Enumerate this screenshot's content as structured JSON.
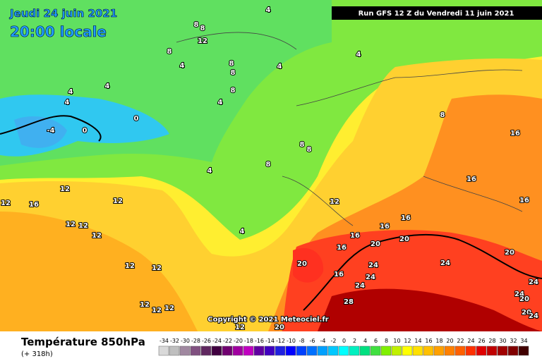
{
  "header": {
    "date": "Jeudi 24 juin 2021",
    "time": "20:00 locale",
    "run": "Run GFS 12 Z du Vendredi 11 juin 2021",
    "copyright": "Copyright © 2021 Meteociel.fr"
  },
  "footer": {
    "title": "Température 850hPa",
    "lead": "(+ 318h)"
  },
  "legend": {
    "values": [
      -34,
      -32,
      -30,
      -28,
      -26,
      -24,
      -22,
      -20,
      -18,
      -16,
      -14,
      -12,
      -10,
      -8,
      -6,
      -4,
      -2,
      0,
      2,
      4,
      6,
      8,
      10,
      12,
      14,
      16,
      18,
      20,
      22,
      24,
      26,
      28,
      30,
      32,
      34
    ],
    "colors": [
      "#d9d9d9",
      "#bfbfbf",
      "#a088a0",
      "#805080",
      "#602860",
      "#400040",
      "#700070",
      "#a000a0",
      "#c000c0",
      "#6000a0",
      "#4000c0",
      "#2020e0",
      "#0000ff",
      "#0040ff",
      "#0070ff",
      "#00a0ff",
      "#00c8ff",
      "#00ffff",
      "#00f0c0",
      "#00e080",
      "#40e040",
      "#80f000",
      "#c0f000",
      "#ffff00",
      "#ffe000",
      "#ffc000",
      "#ffa000",
      "#ff8000",
      "#ff6000",
      "#ff3000",
      "#e00000",
      "#c00000",
      "#a00000",
      "#800000",
      "#400000"
    ]
  },
  "contour_labels": [
    4,
    8,
    8,
    12,
    8,
    4,
    8,
    8,
    4,
    4,
    4,
    4,
    4,
    0,
    -4,
    0,
    8,
    4,
    8,
    8,
    8,
    4,
    12,
    12,
    16,
    12,
    12,
    12,
    12,
    4,
    12,
    16,
    16,
    16,
    16,
    20,
    20,
    20,
    16,
    24,
    24,
    24,
    24,
    28,
    12,
    12,
    12,
    12,
    12,
    20,
    12,
    16,
    16,
    16,
    20,
    24,
    24,
    20,
    20,
    24,
    8
  ]
}
